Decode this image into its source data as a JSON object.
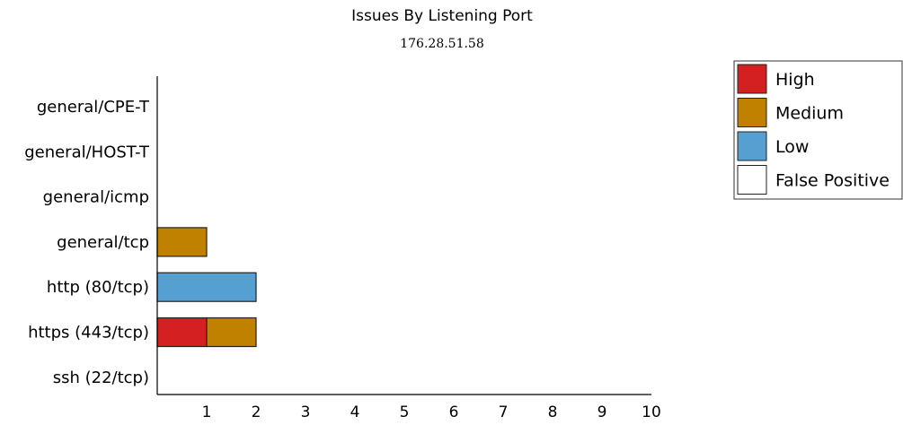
{
  "chart_data": {
    "type": "bar",
    "orientation": "horizontal",
    "stacked": true,
    "title": "Issues By Listening Port",
    "subtitle": "176.28.51.58",
    "categories": [
      "general/CPE-T",
      "general/HOST-T",
      "general/icmp",
      "general/tcp",
      "http (80/tcp)",
      "https (443/tcp)",
      "ssh (22/tcp)"
    ],
    "series": [
      {
        "name": "High",
        "color": "#D42020",
        "values": [
          0,
          0,
          0,
          0,
          0,
          1,
          0
        ]
      },
      {
        "name": "Medium",
        "color": "#C08000",
        "values": [
          0,
          0,
          0,
          1,
          0,
          1,
          0
        ]
      },
      {
        "name": "Low",
        "color": "#55A0D0",
        "values": [
          0,
          0,
          0,
          0,
          2,
          0,
          0
        ]
      },
      {
        "name": "False Positive",
        "color": "#FFFFFF",
        "values": [
          0,
          0,
          0,
          0,
          0,
          0,
          0
        ]
      }
    ],
    "xlim": [
      0,
      10
    ],
    "xticks": [
      "1",
      "2",
      "3",
      "4",
      "5",
      "6",
      "7",
      "8",
      "9",
      "10"
    ],
    "grid": false,
    "legend_position": "top-right"
  }
}
